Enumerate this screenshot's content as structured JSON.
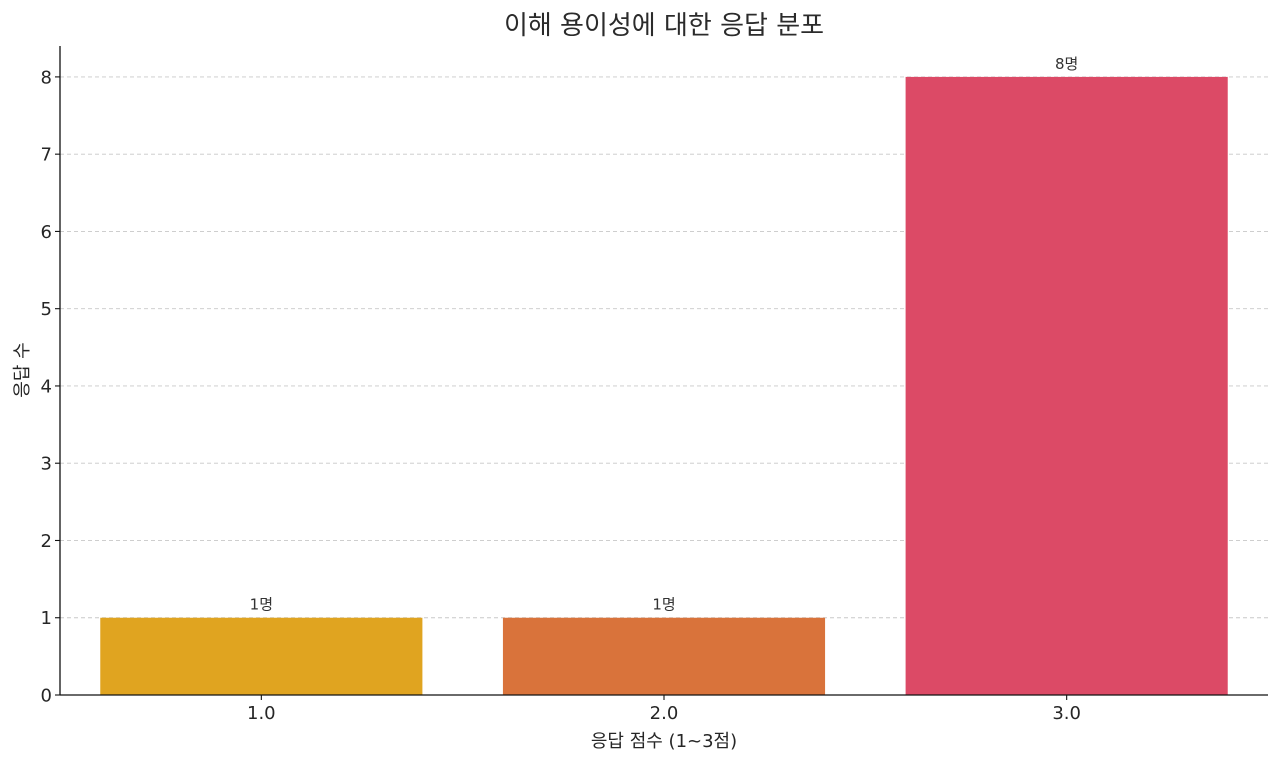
{
  "chart_data": {
    "type": "bar",
    "title": "이해 용이성에 대한 응답 분포",
    "xlabel": "응답 점수 (1~3점)",
    "ylabel": "응답 수",
    "categories": [
      "1.0",
      "2.0",
      "3.0"
    ],
    "values": [
      1,
      1,
      8
    ],
    "data_labels": [
      "1명",
      "1명",
      "8명"
    ],
    "colors": [
      "#E0A420",
      "#D9733B",
      "#DC4A66"
    ],
    "ylim": [
      0,
      8.4
    ],
    "yticks": [
      0,
      1,
      2,
      3,
      4,
      5,
      6,
      7,
      8
    ],
    "grid": true
  }
}
